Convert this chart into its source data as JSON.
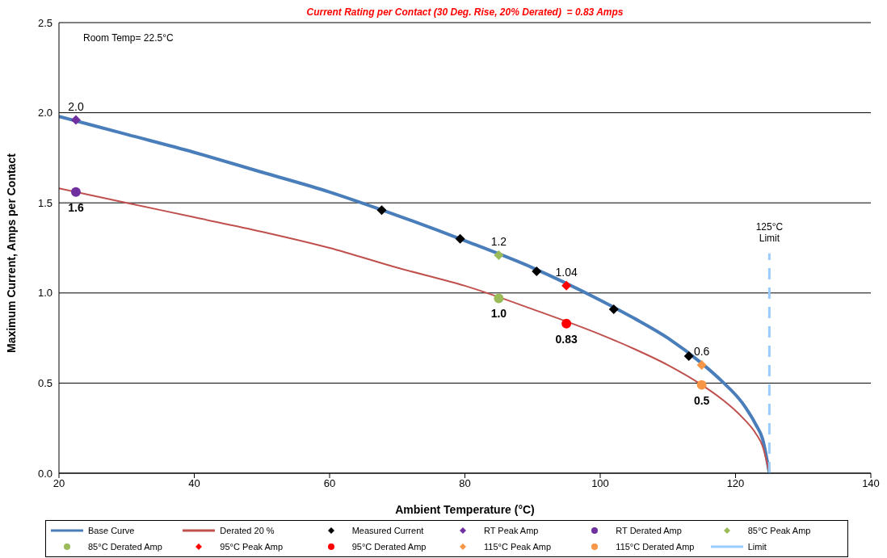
{
  "chart_data": {
    "type": "line",
    "title": "Current Rating per Contact (30 Deg. Rise, 20% Derated)  = 0.83 Amps",
    "xlabel": "Ambient Temperature (°C)",
    "ylabel": "Maximum Current, Amps per Contact",
    "annotations": [
      "Room Temp= 22.5°C",
      "125°C Limit"
    ],
    "xlim": [
      20,
      140
    ],
    "xticks": [
      20,
      40,
      60,
      80,
      100,
      120,
      140
    ],
    "ylim": [
      0,
      2.5
    ],
    "yticks": [
      {
        "value": 0,
        "label": "0.0"
      },
      {
        "value": 0.5,
        "label": "0.5"
      },
      {
        "value": 1,
        "label": "1.0"
      },
      {
        "value": 1.5,
        "label": "1.5"
      },
      {
        "value": 2,
        "label": "2.0"
      },
      {
        "value": 2.5,
        "label": "2.5"
      }
    ],
    "grid": "y",
    "legend": "bottom",
    "series": [
      {
        "name": "Base Curve",
        "color": "#4a7ebb",
        "marker": "none",
        "line_style": "solid",
        "x": [
          20,
          30,
          40,
          50,
          60,
          70,
          80,
          90,
          100,
          105,
          110,
          115,
          118,
          121,
          123,
          124,
          125
        ],
        "values": [
          1.98,
          1.88,
          1.78,
          1.67,
          1.56,
          1.43,
          1.29,
          1.14,
          0.96,
          0.86,
          0.75,
          0.61,
          0.51,
          0.39,
          0.27,
          0.19,
          0
        ]
      },
      {
        "name": "Derated 20 %",
        "color": "#c0504d",
        "marker": "none",
        "line_style": "solid",
        "x": [
          20,
          30,
          40,
          50,
          60,
          70,
          80,
          90,
          100,
          105,
          110,
          115,
          118,
          121,
          123,
          124,
          125
        ],
        "values": [
          1.58,
          1.5,
          1.42,
          1.34,
          1.25,
          1.14,
          1.04,
          0.91,
          0.77,
          0.69,
          0.6,
          0.49,
          0.41,
          0.31,
          0.22,
          0.15,
          0
        ]
      },
      {
        "name": "Measured Current",
        "type": "scatter",
        "color": "#000000",
        "marker": "diamond",
        "x": [
          67.7,
          79.3,
          90.6,
          102,
          113.1
        ],
        "values": [
          1.46,
          1.3,
          1.12,
          0.91,
          0.65
        ]
      },
      {
        "name": "RT Peak Amp",
        "type": "scatter",
        "color": "#7030a0",
        "marker": "diamond",
        "x": [
          22.5
        ],
        "values": [
          1.96
        ],
        "value_labels": [
          "2.0"
        ]
      },
      {
        "name": "RT Derated Amp",
        "type": "scatter",
        "color": "#7030a0",
        "marker": "circle",
        "x": [
          22.5
        ],
        "values": [
          1.56
        ],
        "value_labels": [
          "1.6"
        ]
      },
      {
        "name": "85°C Peak Amp",
        "type": "scatter",
        "color": "#9bbb59",
        "marker": "diamond",
        "x": [
          85
        ],
        "values": [
          1.21
        ],
        "value_labels": [
          "1.2"
        ]
      },
      {
        "name": "85°C Derated Amp",
        "type": "scatter",
        "color": "#9bbb59",
        "marker": "circle",
        "x": [
          85
        ],
        "values": [
          0.97
        ],
        "value_labels": [
          "1.0"
        ]
      },
      {
        "name": "95°C Peak Amp",
        "type": "scatter",
        "color": "#ff0000",
        "marker": "diamond",
        "x": [
          95
        ],
        "values": [
          1.04
        ],
        "value_labels": [
          "1.04"
        ]
      },
      {
        "name": "95°C Derated Amp",
        "type": "scatter",
        "color": "#ff0000",
        "marker": "circle",
        "x": [
          95
        ],
        "values": [
          0.83
        ],
        "value_labels": [
          "0.83"
        ]
      },
      {
        "name": "115°C Peak Amp",
        "type": "scatter",
        "color": "#f79646",
        "marker": "diamond",
        "x": [
          115
        ],
        "values": [
          0.6
        ],
        "value_labels": [
          "0.6"
        ]
      },
      {
        "name": "115°C Derated Amp",
        "type": "scatter",
        "color": "#f79646",
        "marker": "circle",
        "x": [
          115
        ],
        "values": [
          0.49
        ],
        "value_labels": [
          "0.5"
        ]
      },
      {
        "name": "Limit",
        "color": "#99ccff",
        "marker": "none",
        "line_style": "dashed",
        "x": [
          125,
          125
        ],
        "values": [
          0,
          1.22
        ]
      }
    ]
  }
}
